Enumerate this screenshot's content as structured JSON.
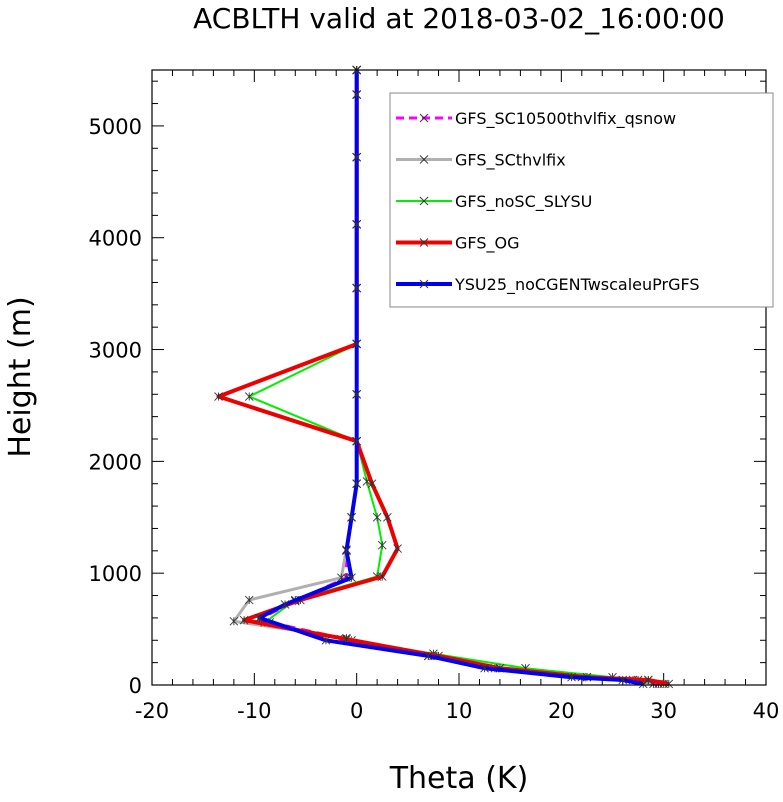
{
  "chart_data": {
    "type": "line",
    "title": "ACBLTH valid at 2018-03-02_16:00:00",
    "xlabel": "Theta (K)",
    "ylabel": "Height (m)",
    "xlim": [
      -20,
      40
    ],
    "ylim": [
      0,
      5500
    ],
    "x_ticks": [
      "-20",
      "-10",
      "0",
      "10",
      "20",
      "30",
      "40"
    ],
    "y_ticks": [
      "0",
      "1000",
      "2000",
      "3000",
      "4000",
      "5000"
    ],
    "legend_position": "top-right",
    "series": [
      {
        "name": "GFS_SC10500thvlfix_qsnow",
        "color": "#ff00ff",
        "dashed": true,
        "width": 3,
        "points": [
          [
            29.5,
            10
          ],
          [
            27.5,
            45
          ],
          [
            22.5,
            70
          ],
          [
            14.0,
            150
          ],
          [
            7.5,
            260
          ],
          [
            -0.5,
            400
          ],
          [
            -8.5,
            560
          ],
          [
            -9.5,
            590
          ],
          [
            -6.0,
            750
          ],
          [
            -1.0,
            960
          ],
          [
            -1.0,
            1210
          ],
          [
            -0.5,
            1500
          ],
          [
            0.0,
            1800
          ],
          [
            0.0,
            2180
          ],
          [
            0.0,
            2600
          ],
          [
            0.0,
            3050
          ],
          [
            0.0,
            3550
          ],
          [
            0.0,
            4120
          ],
          [
            0.0,
            4720
          ],
          [
            0.0,
            5280
          ],
          [
            0.0,
            5500
          ]
        ]
      },
      {
        "name": "GFS_SCthvlfix",
        "color": "#b0b0b0",
        "dashed": false,
        "width": 3,
        "points": [
          [
            29.0,
            10
          ],
          [
            27.0,
            45
          ],
          [
            22.0,
            70
          ],
          [
            13.5,
            150
          ],
          [
            7.0,
            260
          ],
          [
            -1.0,
            420
          ],
          [
            -12.0,
            570
          ],
          [
            -10.5,
            760
          ],
          [
            -1.5,
            960
          ],
          [
            -1.0,
            1210
          ],
          [
            -0.5,
            1500
          ],
          [
            0.0,
            1800
          ],
          [
            0.0,
            2180
          ],
          [
            0.0,
            2600
          ],
          [
            0.0,
            3050
          ],
          [
            0.0,
            3550
          ],
          [
            0.0,
            4120
          ],
          [
            0.0,
            4720
          ],
          [
            0.0,
            5280
          ],
          [
            0.0,
            5500
          ]
        ]
      },
      {
        "name": "GFS_noSC_SLYSU",
        "color": "#00ee00",
        "dashed": false,
        "width": 2,
        "points": [
          [
            30.0,
            10
          ],
          [
            28.5,
            45
          ],
          [
            25.0,
            70
          ],
          [
            16.5,
            150
          ],
          [
            7.5,
            280
          ],
          [
            -1.5,
            410
          ],
          [
            -9.0,
            560
          ],
          [
            -6.0,
            760
          ],
          [
            2.0,
            970
          ],
          [
            2.5,
            1250
          ],
          [
            2.0,
            1500
          ],
          [
            1.0,
            1820
          ],
          [
            0.0,
            2180
          ],
          [
            -10.5,
            2580
          ],
          [
            0.0,
            3050
          ],
          [
            0.0,
            3550
          ],
          [
            0.0,
            4120
          ],
          [
            0.0,
            4720
          ],
          [
            0.0,
            5280
          ],
          [
            0.0,
            5500
          ]
        ]
      },
      {
        "name": "GFS_OG",
        "color": "#ee0000",
        "dashed": false,
        "width": 4,
        "points": [
          [
            30.5,
            10
          ],
          [
            28.5,
            45
          ],
          [
            22.5,
            70
          ],
          [
            14.0,
            150
          ],
          [
            8.0,
            260
          ],
          [
            -1.0,
            410
          ],
          [
            -11.0,
            580
          ],
          [
            -5.5,
            760
          ],
          [
            2.5,
            970
          ],
          [
            4.0,
            1220
          ],
          [
            3.0,
            1500
          ],
          [
            1.5,
            1800
          ],
          [
            0.0,
            2180
          ],
          [
            -13.5,
            2580
          ],
          [
            0.0,
            3050
          ],
          [
            0.0,
            3550
          ],
          [
            0.0,
            4120
          ],
          [
            0.0,
            4720
          ],
          [
            0.0,
            5280
          ],
          [
            0.0,
            5500
          ]
        ]
      },
      {
        "name": "YSU25_noCGENTwscaleuPrGFS",
        "color": "#0000ee",
        "dashed": false,
        "width": 4,
        "points": [
          [
            28.0,
            10
          ],
          [
            26.0,
            45
          ],
          [
            21.0,
            70
          ],
          [
            12.5,
            150
          ],
          [
            7.0,
            260
          ],
          [
            -3.0,
            400
          ],
          [
            -9.5,
            600
          ],
          [
            -7.0,
            720
          ],
          [
            -0.5,
            960
          ],
          [
            -1.0,
            1200
          ],
          [
            -0.5,
            1500
          ],
          [
            0.0,
            1800
          ],
          [
            0.0,
            2180
          ],
          [
            0.0,
            2600
          ],
          [
            0.0,
            3050
          ],
          [
            0.0,
            3550
          ],
          [
            0.0,
            4120
          ],
          [
            0.0,
            4720
          ],
          [
            0.0,
            5280
          ],
          [
            0.0,
            5500
          ]
        ]
      }
    ]
  }
}
